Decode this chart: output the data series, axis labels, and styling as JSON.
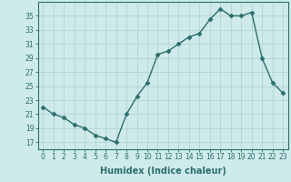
{
  "x": [
    0,
    1,
    2,
    3,
    4,
    5,
    6,
    7,
    8,
    9,
    10,
    11,
    12,
    13,
    14,
    15,
    16,
    17,
    18,
    19,
    20,
    21,
    22,
    23
  ],
  "y": [
    22,
    21,
    20.5,
    19.5,
    19,
    18,
    17.5,
    17,
    21,
    23.5,
    25.5,
    29.5,
    30,
    31,
    32,
    32.5,
    34.5,
    36,
    35,
    35,
    35.5,
    29,
    25.5,
    24
  ],
  "line_color": "#2d6e6e",
  "marker": "D",
  "markersize": 2.5,
  "linewidth": 1.0,
  "background_color": "#ceeaea",
  "grid_color": "#b0d0d0",
  "xlabel": "Humidex (Indice chaleur)",
  "xlabel_fontsize": 7,
  "yticks": [
    17,
    19,
    21,
    23,
    25,
    27,
    29,
    31,
    33,
    35
  ],
  "xticks": [
    0,
    1,
    2,
    3,
    4,
    5,
    6,
    7,
    8,
    9,
    10,
    11,
    12,
    13,
    14,
    15,
    16,
    17,
    18,
    19,
    20,
    21,
    22,
    23
  ],
  "ylim": [
    16.0,
    37.0
  ],
  "xlim": [
    -0.5,
    23.5
  ],
  "tick_fontsize": 5.5
}
